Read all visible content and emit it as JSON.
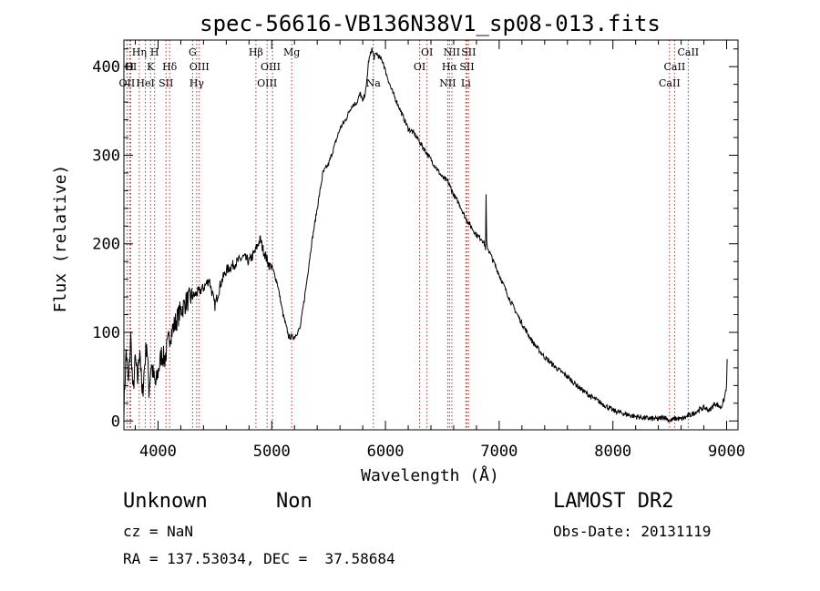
{
  "chart_data": {
    "type": "line",
    "title": "spec-56616-VB136N38V1_sp08-013.fits",
    "xlabel": "Wavelength (Å)",
    "ylabel": "Flux (relative)",
    "xlim": [
      3700,
      9100
    ],
    "ylim": [
      -10,
      430
    ],
    "xticks": [
      4000,
      5000,
      6000,
      7000,
      8000,
      9000
    ],
    "xtick_labels": [
      "4000",
      "5000",
      "6000",
      "7000",
      "8000",
      "9000"
    ],
    "yticks": [
      0,
      100,
      200,
      300,
      400
    ],
    "ytick_labels": [
      "0",
      "100",
      "200",
      "300",
      "400"
    ],
    "grid": false,
    "series": [
      {
        "x": [
          3700,
          3720,
          3740,
          3760,
          3780,
          3800,
          3820,
          3840,
          3860,
          3880,
          3900,
          3920,
          3940,
          3960,
          3980,
          4000,
          4030,
          4060,
          4100,
          4150,
          4200,
          4250,
          4300,
          4350,
          4400,
          4450,
          4500,
          4550,
          4600,
          4650,
          4700,
          4750,
          4800,
          4850,
          4880,
          4900,
          4920,
          4950,
          4980,
          5000,
          5050,
          5100,
          5150,
          5200,
          5250,
          5300,
          5350,
          5400,
          5450,
          5500,
          5550,
          5600,
          5650,
          5700,
          5750,
          5780,
          5800,
          5830,
          5850,
          5880,
          5900,
          5920,
          5950,
          5980,
          6000,
          6050,
          6100,
          6150,
          6200,
          6250,
          6300,
          6350,
          6400,
          6450,
          6500,
          6550,
          6600,
          6650,
          6700,
          6750,
          6800,
          6850,
          6870,
          6880,
          6885,
          6890,
          6900,
          6950,
          7000,
          7100,
          7200,
          7300,
          7400,
          7500,
          7600,
          7700,
          7800,
          7900,
          8000,
          8100,
          8200,
          8300,
          8400,
          8450,
          8500,
          8550,
          8600,
          8650,
          8700,
          8750,
          8800,
          8850,
          8900,
          8950,
          8980,
          9000,
          9005
        ],
        "y": [
          15,
          80,
          40,
          95,
          30,
          70,
          45,
          85,
          25,
          60,
          90,
          35,
          65,
          50,
          40,
          55,
          75,
          70,
          95,
          110,
          125,
          135,
          140,
          145,
          150,
          160,
          130,
          155,
          170,
          175,
          180,
          185,
          180,
          190,
          200,
          205,
          195,
          185,
          175,
          175,
          155,
          120,
          95,
          95,
          105,
          150,
          200,
          240,
          280,
          290,
          310,
          330,
          340,
          355,
          360,
          370,
          360,
          375,
          405,
          420,
          410,
          415,
          410,
          405,
          395,
          375,
          360,
          345,
          330,
          325,
          315,
          305,
          295,
          285,
          275,
          270,
          255,
          245,
          230,
          220,
          210,
          205,
          200,
          195,
          255,
          200,
          195,
          180,
          165,
          135,
          110,
          88,
          72,
          60,
          50,
          38,
          28,
          20,
          12,
          8,
          5,
          3,
          2,
          5,
          0,
          3,
          2,
          5,
          8,
          12,
          15,
          12,
          20,
          15,
          25,
          40,
          70
        ]
      }
    ],
    "line_labels": [
      {
        "label": "OII",
        "x": 3727,
        "row": 3
      },
      {
        "label": "H",
        "x": 3750,
        "row": 2
      },
      {
        "label": "OI",
        "x": 3760,
        "row": 2
      },
      {
        "label": "Hη",
        "x": 3835,
        "row": 1
      },
      {
        "label": "H",
        "x": 3970,
        "row": 1
      },
      {
        "label": "K",
        "x": 3934,
        "row": 2
      },
      {
        "label": "HeI",
        "x": 3889,
        "row": 3
      },
      {
        "label": "SII",
        "x": 4070,
        "row": 3
      },
      {
        "label": "Hδ",
        "x": 4102,
        "row": 2
      },
      {
        "label": "G",
        "x": 4304,
        "row": 1
      },
      {
        "label": "OIII",
        "x": 4363,
        "row": 2
      },
      {
        "label": "Hγ",
        "x": 4340,
        "row": 3
      },
      {
        "label": "Hβ",
        "x": 4861,
        "row": 1
      },
      {
        "label": "OIII",
        "x": 4990,
        "row": 2
      },
      {
        "label": "OIII",
        "x": 4959,
        "row": 3
      },
      {
        "label": "Mg",
        "x": 5175,
        "row": 1
      },
      {
        "label": "Na",
        "x": 5893,
        "row": 3
      },
      {
        "label": "OI",
        "x": 6365,
        "row": 1
      },
      {
        "label": "OI",
        "x": 6300,
        "row": 2
      },
      {
        "label": "NII",
        "x": 6584,
        "row": 1
      },
      {
        "label": "Hα",
        "x": 6563,
        "row": 2
      },
      {
        "label": "NII",
        "x": 6548,
        "row": 3
      },
      {
        "label": "SII",
        "x": 6731,
        "row": 1
      },
      {
        "label": "SII",
        "x": 6716,
        "row": 2
      },
      {
        "label": "Li",
        "x": 6707,
        "row": 3
      },
      {
        "label": "CaII",
        "x": 8662,
        "row": 1
      },
      {
        "label": "CaII",
        "x": 8542,
        "row": 2
      },
      {
        "label": "CaII",
        "x": 8498,
        "row": 3
      }
    ],
    "line_marks": [
      3727,
      3750,
      3760,
      3835,
      3889,
      3934,
      3970,
      4070,
      4102,
      4304,
      4340,
      4363,
      4861,
      4959,
      5007,
      5175,
      5893,
      6300,
      6365,
      6548,
      6563,
      6584,
      6707,
      6716,
      6731,
      8498,
      8542,
      8662
    ]
  },
  "info": {
    "class_label": "Unknown",
    "subclass_label": "Non",
    "survey": "LAMOST DR2",
    "cz": "cz = NaN",
    "obs_date": "Obs-Date: 20131119",
    "coords": "RA = 137.53034, DEC =  37.58684"
  }
}
